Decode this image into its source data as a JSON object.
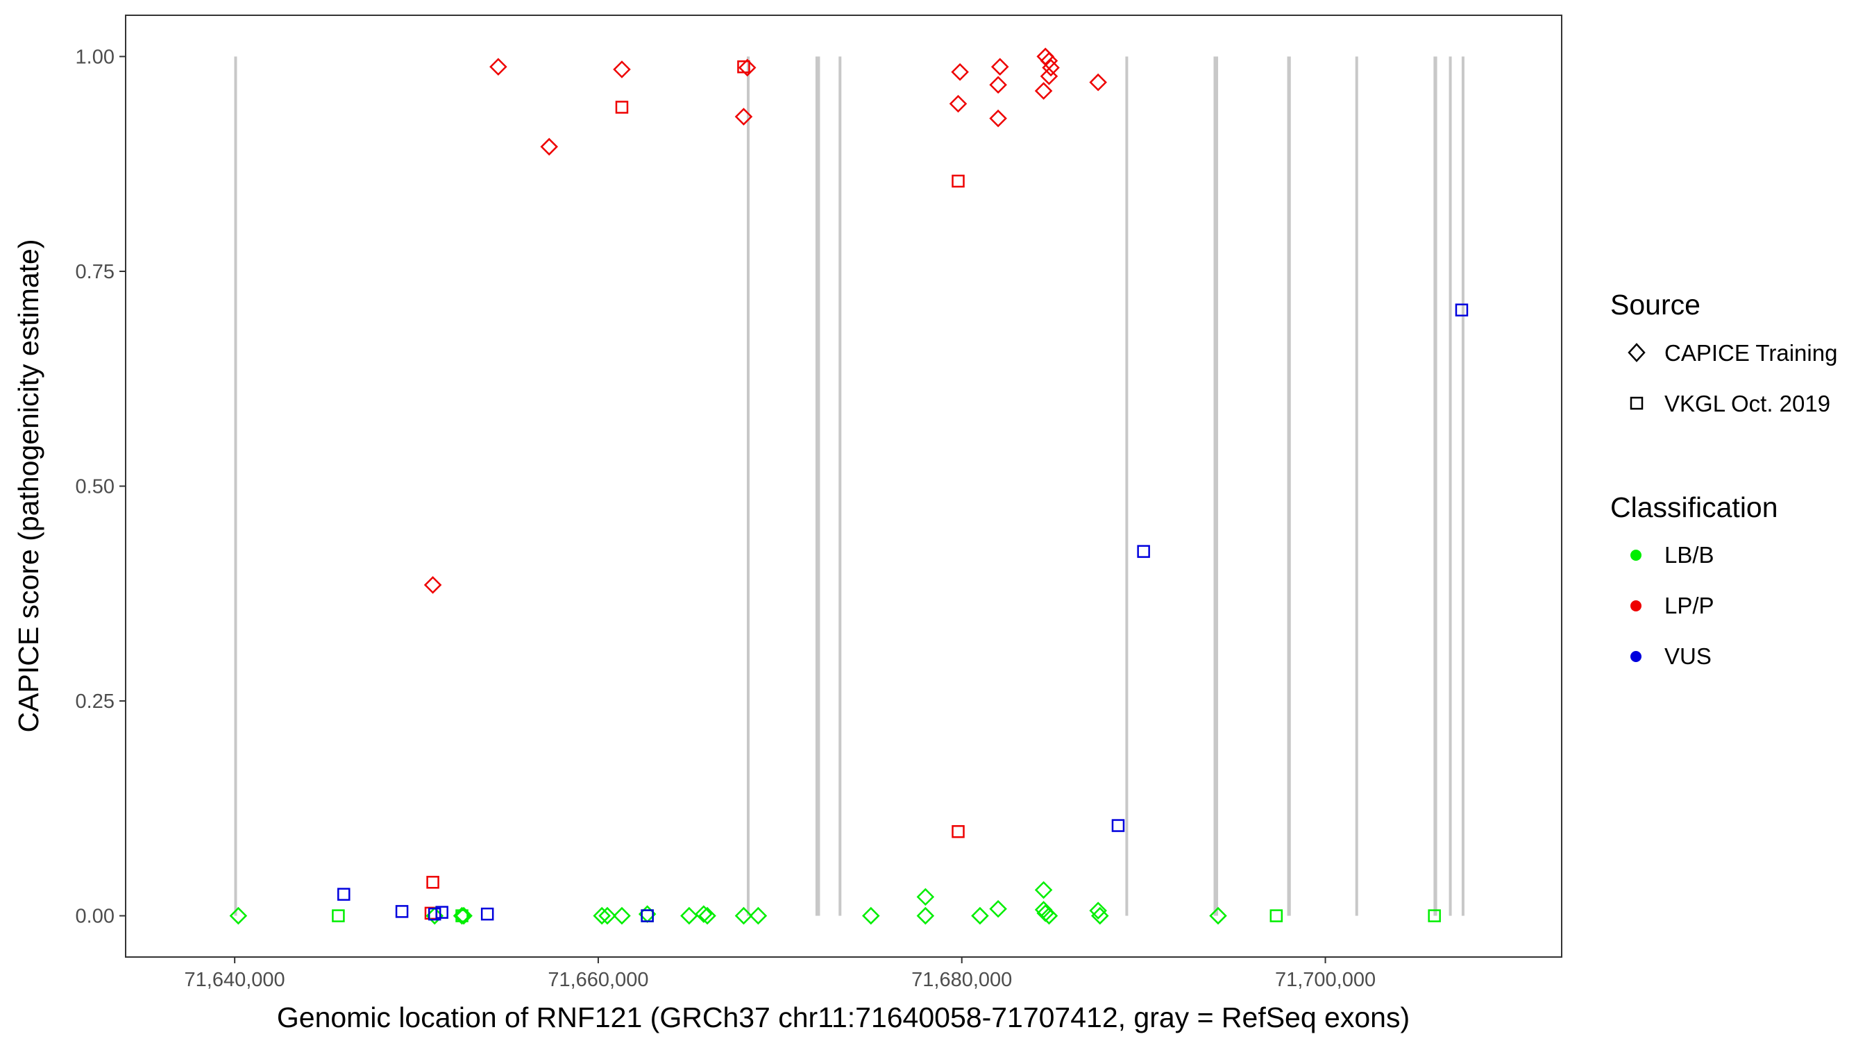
{
  "chart_data": {
    "type": "scatter",
    "xlabel": "Genomic location of RNF121 (GRCh37 chr11:71640058-71707412, gray = RefSeq exons)",
    "ylabel": "CAPICE score (pathogenicity estimate)",
    "xlim": [
      71634000,
      71713000
    ],
    "ylim": [
      -0.048,
      1.048
    ],
    "x_ticks": [
      71640000,
      71660000,
      71680000,
      71700000
    ],
    "x_tick_labels": [
      "71,640,000",
      "71,660,000",
      "71,680,000",
      "71,700,000"
    ],
    "y_ticks": [
      0,
      0.25,
      0.5,
      0.75,
      1.0
    ],
    "y_tick_labels": [
      "0.00",
      "0.25",
      "0.50",
      "0.75",
      "1.00"
    ],
    "grid": false,
    "exon_color": "#c8c8c8",
    "exons": [
      [
        71640000,
        71640100
      ],
      [
        71668200,
        71668300
      ],
      [
        71671950,
        71672200
      ],
      [
        71673250,
        71673350
      ],
      [
        71689000,
        71689150
      ],
      [
        71693850,
        71694100
      ],
      [
        71697900,
        71698100
      ],
      [
        71701650,
        71701800
      ],
      [
        71705950,
        71706150
      ],
      [
        71706800,
        71706950
      ],
      [
        71707500,
        71707650
      ]
    ],
    "legend": {
      "placement": "right",
      "source_title": "Source",
      "source_items": [
        {
          "label": "CAPICE Training",
          "shape": "diamond"
        },
        {
          "label": "VKGL Oct. 2019",
          "shape": "square"
        }
      ],
      "class_title": "Classification",
      "class_items": [
        {
          "label": "LB/B",
          "color": "#00ee00"
        },
        {
          "label": "LP/P",
          "color": "#ee0000"
        },
        {
          "label": "VUS",
          "color": "#0000dd"
        }
      ]
    },
    "series": [
      {
        "classification": "LP/P",
        "source": "CAPICE Training",
        "shape": "diamond",
        "color": "#ee0000",
        "points": [
          [
            71650900,
            0.385
          ],
          [
            71654500,
            0.988
          ],
          [
            71657300,
            0.895
          ],
          [
            71661300,
            0.985
          ],
          [
            71668200,
            0.987
          ],
          [
            71668000,
            0.93
          ],
          [
            71679900,
            0.982
          ],
          [
            71679800,
            0.945
          ],
          [
            71682100,
            0.988
          ],
          [
            71682000,
            0.967
          ],
          [
            71682000,
            0.928
          ],
          [
            71684600,
            1.0
          ],
          [
            71684800,
            0.995
          ],
          [
            71684900,
            0.987
          ],
          [
            71684800,
            0.977
          ],
          [
            71684500,
            0.96
          ],
          [
            71687500,
            0.97
          ]
        ]
      },
      {
        "classification": "LP/P",
        "source": "VKGL Oct. 2019",
        "shape": "square",
        "color": "#ee0000",
        "points": [
          [
            71661300,
            0.941
          ],
          [
            71668000,
            0.988
          ],
          [
            71679800,
            0.855
          ],
          [
            71679800,
            0.098
          ],
          [
            71650900,
            0.039
          ],
          [
            71650800,
            0.003
          ]
        ]
      },
      {
        "classification": "LB/B",
        "source": "CAPICE Training",
        "shape": "diamond",
        "color": "#00ee00",
        "points": [
          [
            71640200,
            0.0
          ],
          [
            71651000,
            0.0
          ],
          [
            71652500,
            0.0
          ],
          [
            71652600,
            0.0
          ],
          [
            71660200,
            0.0
          ],
          [
            71660500,
            0.0
          ],
          [
            71661300,
            0.0
          ],
          [
            71662700,
            0.002
          ],
          [
            71665000,
            0.0
          ],
          [
            71665800,
            0.002
          ],
          [
            71666000,
            0.0
          ],
          [
            71668000,
            0.0
          ],
          [
            71668800,
            0.0
          ],
          [
            71675000,
            0.0
          ],
          [
            71678000,
            0.022
          ],
          [
            71678000,
            0.0
          ],
          [
            71681000,
            0.0
          ],
          [
            71682000,
            0.008
          ],
          [
            71684500,
            0.03
          ],
          [
            71684500,
            0.007
          ],
          [
            71684600,
            0.003
          ],
          [
            71684800,
            0.0
          ],
          [
            71687500,
            0.006
          ],
          [
            71687600,
            0.0
          ],
          [
            71694100,
            0.0
          ]
        ]
      },
      {
        "classification": "LB/B",
        "source": "VKGL Oct. 2019",
        "shape": "square",
        "color": "#00ee00",
        "points": [
          [
            71645700,
            0.0
          ],
          [
            71652500,
            0.0
          ],
          [
            71662700,
            0.0
          ],
          [
            71697300,
            0.0
          ],
          [
            71706000,
            0.0
          ]
        ]
      },
      {
        "classification": "VUS",
        "source": "VKGL Oct. 2019",
        "shape": "square",
        "color": "#0000dd",
        "points": [
          [
            71707500,
            0.705
          ],
          [
            71690000,
            0.424
          ],
          [
            71688600,
            0.105
          ],
          [
            71646000,
            0.025
          ],
          [
            71649200,
            0.005
          ],
          [
            71651400,
            0.004
          ],
          [
            71651000,
            0.002
          ],
          [
            71653900,
            0.002
          ],
          [
            71662700,
            0.0
          ]
        ]
      }
    ]
  }
}
